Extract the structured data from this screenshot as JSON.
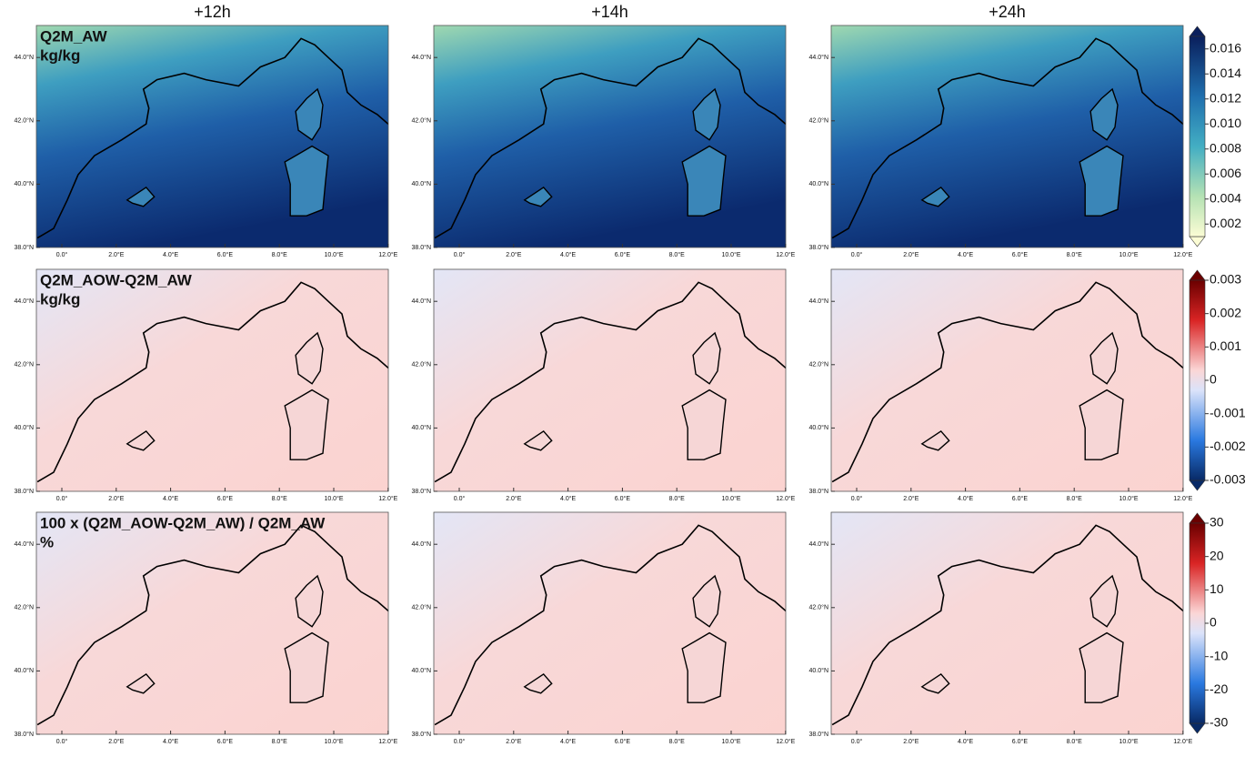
{
  "columns": [
    "+12h",
    "+14h",
    "+24h"
  ],
  "rows": [
    {
      "label_lines": [
        "Q2M_AW",
        "kg/kg"
      ],
      "colorbar_ticks": [
        "0.016",
        "0.014",
        "0.012",
        "0.010",
        "0.008",
        "0.006",
        "0.004",
        "0.002"
      ]
    },
    {
      "label_lines": [
        "Q2M_AOW-Q2M_AW",
        "kg/kg"
      ],
      "colorbar_ticks": [
        "0.003",
        "0.002",
        "0.001",
        "0",
        "-0.001",
        "-0.002",
        "-0.003"
      ]
    },
    {
      "label_lines": [
        "100 x (Q2M_AOW-Q2M_AW) / Q2M_AW",
        "%"
      ],
      "colorbar_ticks": [
        "30",
        "20",
        "10",
        "0",
        "-10",
        "-20",
        "-30"
      ]
    }
  ],
  "lat_ticks": [
    "38.0°N",
    "40.0°N",
    "42.0°N",
    "44.0°N"
  ],
  "lon_ticks": [
    "0.0°",
    "2.0°E",
    "4.0°E",
    "6.0°E",
    "8.0°E",
    "10.0°E",
    "12.0°E"
  ]
}
